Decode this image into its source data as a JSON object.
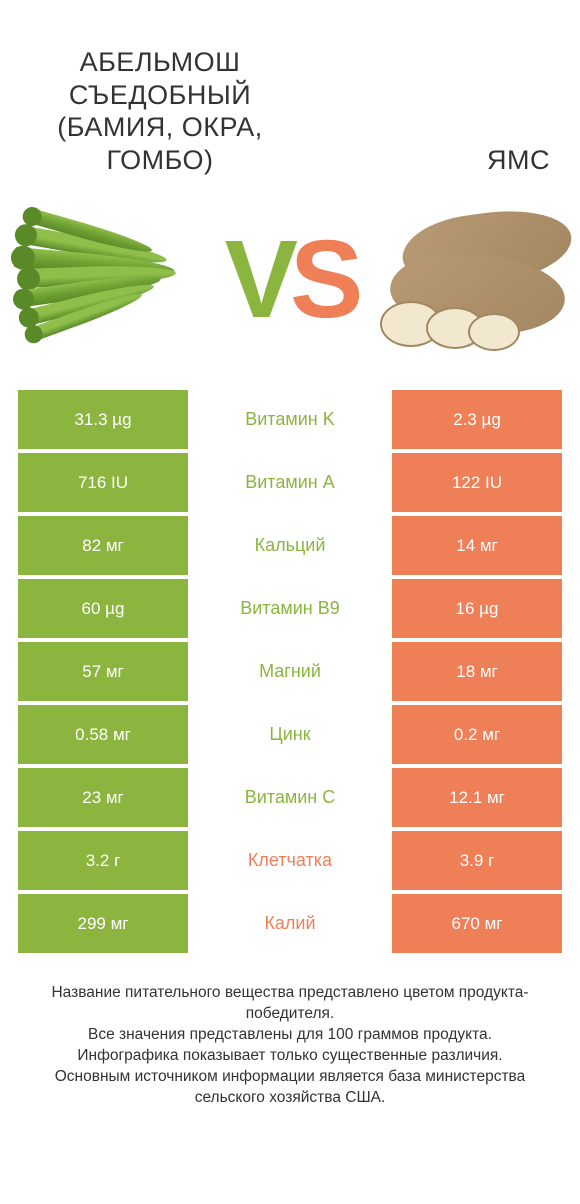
{
  "colors": {
    "left": "#8bb53f",
    "right": "#ee7f57",
    "bg": "#ffffff",
    "text": "#333333",
    "okra_light": "#8fbf4a",
    "okra_dark": "#6fa033",
    "okra_shadow": "#5a8a28",
    "yam_skin": "#b89a74",
    "yam_skin_dark": "#a38760",
    "yam_flesh": "#f2e8cf"
  },
  "header": {
    "left_title": "АБЕЛЬМОШ СЪЕДОБНЫЙ (БАМИЯ, ОКРА, ГОМБО)",
    "right_title": "ЯМС",
    "vs_v": "V",
    "vs_s": "S"
  },
  "rows": [
    {
      "left": "31.3 µg",
      "mid": "Витамин K",
      "right": "2.3 µg",
      "winner": "left"
    },
    {
      "left": "716 IU",
      "mid": "Витамин A",
      "right": "122 IU",
      "winner": "left"
    },
    {
      "left": "82 мг",
      "mid": "Кальций",
      "right": "14 мг",
      "winner": "left"
    },
    {
      "left": "60 µg",
      "mid": "Витамин B9",
      "right": "16 µg",
      "winner": "left"
    },
    {
      "left": "57 мг",
      "mid": "Магний",
      "right": "18 мг",
      "winner": "left"
    },
    {
      "left": "0.58 мг",
      "mid": "Цинк",
      "right": "0.2 мг",
      "winner": "left"
    },
    {
      "left": "23 мг",
      "mid": "Витамин C",
      "right": "12.1 мг",
      "winner": "left"
    },
    {
      "left": "3.2 г",
      "mid": "Клетчатка",
      "right": "3.9 г",
      "winner": "right"
    },
    {
      "left": "299 мг",
      "mid": "Калий",
      "right": "670 мг",
      "winner": "right"
    }
  ],
  "footer": {
    "l1": "Название питательного вещества представлено цветом продукта-победителя.",
    "l2": "Все значения представлены для 100 граммов продукта.",
    "l3": "Инфографика показывает только существенные различия.",
    "l4": "Основным источником информации является база министерства сельского хозяйства США."
  }
}
